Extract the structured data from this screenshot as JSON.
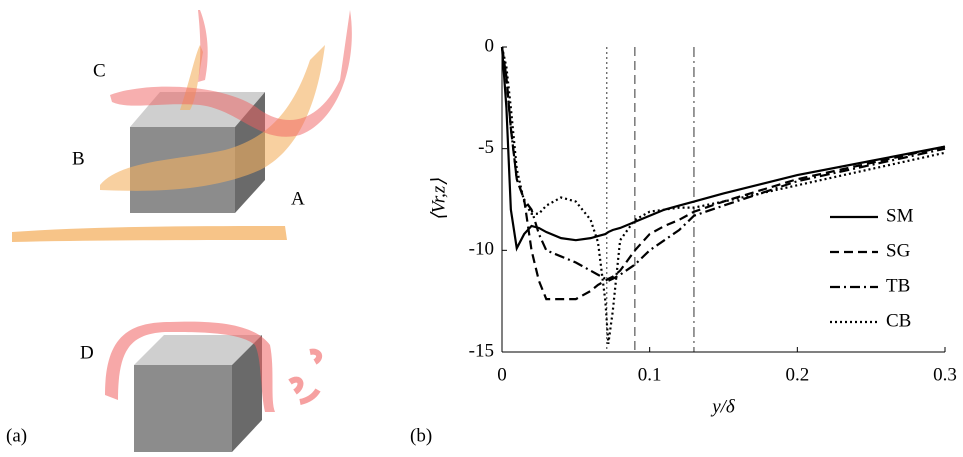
{
  "panel_labels": [
    "(a)",
    "(b)"
  ],
  "illustration": {
    "labels": [
      "A",
      "B",
      "C",
      "D"
    ]
  },
  "chart_data": {
    "type": "line",
    "xlabel": "y/δ",
    "ylabel": "⟨Vr,z⟩",
    "x": [
      0,
      0.003,
      0.006,
      0.01,
      0.015,
      0.02,
      0.025,
      0.03,
      0.04,
      0.05,
      0.06,
      0.065,
      0.07,
      0.072,
      0.075,
      0.08,
      0.09,
      0.1,
      0.11,
      0.12,
      0.13,
      0.15,
      0.2,
      0.25,
      0.3
    ],
    "series": [
      {
        "name": "SM",
        "color": "#000000",
        "dash": "solid",
        "values": [
          0,
          -3,
          -8,
          -9.9,
          -9.2,
          -8.8,
          -8.9,
          -9.1,
          -9.4,
          -9.5,
          -9.4,
          -9.3,
          -9.2,
          -9.1,
          -9.0,
          -8.9,
          -8.6,
          -8.3,
          -8.0,
          -7.8,
          -7.6,
          -7.2,
          -6.3,
          -5.6,
          -4.9
        ]
      },
      {
        "name": "SG",
        "color": "#000000",
        "dash": "dashed",
        "values": [
          0,
          -1.5,
          -4,
          -6.5,
          -7.5,
          -10,
          -11.5,
          -12.4,
          -12.4,
          -12.4,
          -12,
          -11.7,
          -11.5,
          -11.4,
          -11.3,
          -11,
          -10,
          -9.2,
          -8.8,
          -8.5,
          -8.1,
          -7.6,
          -6.5,
          -5.7,
          -4.9
        ]
      },
      {
        "name": "TB",
        "color": "#000000",
        "dash": "dashdot",
        "values": [
          0,
          -1.5,
          -4,
          -6.5,
          -7.5,
          -8,
          -9.2,
          -10,
          -10.3,
          -10.6,
          -11,
          -11.2,
          -11.4,
          -11.5,
          -11.4,
          -11.2,
          -10.7,
          -10,
          -9.5,
          -9,
          -8.3,
          -7.8,
          -6.6,
          -5.8,
          -5.0
        ]
      },
      {
        "name": "CB",
        "color": "#000000",
        "dash": "dotted",
        "values": [
          0,
          -1,
          -3,
          -6,
          -7.6,
          -8.2,
          -8.2,
          -7.8,
          -7.4,
          -7.6,
          -8.5,
          -9.6,
          -12.5,
          -14.6,
          -13,
          -9.5,
          -8.5,
          -8.1,
          -8.0,
          -7.9,
          -7.9,
          -7.6,
          -6.8,
          -6.0,
          -5.2
        ]
      }
    ],
    "vlines": [
      {
        "x": 0.071,
        "dash": "dotted"
      },
      {
        "x": 0.09,
        "dash": "dashed"
      },
      {
        "x": 0.13,
        "dash": "dashdot"
      }
    ],
    "xlim": [
      0,
      0.3
    ],
    "ylim": [
      -15,
      0
    ],
    "xticks": [
      0,
      0.1,
      0.2,
      0.3
    ],
    "yticks": [
      -15,
      -10,
      -5,
      0
    ],
    "legend": "lower right"
  }
}
